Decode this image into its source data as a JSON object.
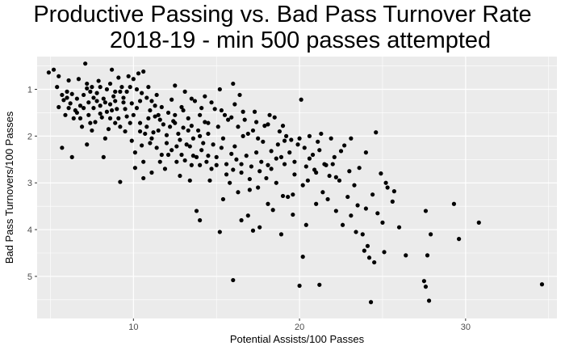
{
  "chart_data": {
    "type": "scatter",
    "title": "Productive Passing vs. Bad Pass Turnover Rate",
    "subtitle": "2018-19 - min 500 passes attempted",
    "xlabel": "Potential Assists/100 Passes",
    "ylabel": "Bad Pass Turnovers/100 Passes",
    "xlim": [
      4.2,
      35.5
    ],
    "ylim": [
      0.3,
      5.9
    ],
    "y_reversed": true,
    "x_ticks": [
      10,
      20,
      30
    ],
    "y_ticks": [
      1,
      2,
      3,
      4,
      5
    ],
    "grid": true,
    "background": "#ebebeb",
    "gridline_color": "#ffffff",
    "point_color": "#000000",
    "points": [
      [
        4.9,
        0.64
      ],
      [
        5.2,
        0.58
      ],
      [
        5.5,
        0.72
      ],
      [
        5.4,
        0.95
      ],
      [
        5.7,
        1.12
      ],
      [
        5.8,
        1.23
      ],
      [
        6.0,
        1.18
      ],
      [
        6.1,
        0.81
      ],
      [
        5.5,
        1.38
      ],
      [
        5.9,
        1.55
      ],
      [
        6.2,
        1.3
      ],
      [
        6.4,
        1.62
      ],
      [
        6.6,
        1.5
      ],
      [
        6.8,
        1.35
      ],
      [
        7.0,
        1.12
      ],
      [
        7.2,
        0.88
      ],
      [
        7.1,
        0.45
      ],
      [
        7.4,
        1.05
      ],
      [
        7.6,
        1.4
      ],
      [
        7.8,
        1.25
      ],
      [
        8.0,
        0.95
      ],
      [
        8.2,
        1.2
      ],
      [
        8.4,
        1.48
      ],
      [
        8.6,
        1.32
      ],
      [
        8.8,
        1.15
      ],
      [
        9.0,
        1.42
      ],
      [
        9.2,
        1.05
      ],
      [
        9.4,
        1.28
      ],
      [
        9.6,
        1.58
      ],
      [
        9.8,
        0.95
      ],
      [
        7.3,
        1.55
      ],
      [
        7.7,
        1.7
      ],
      [
        8.1,
        1.6
      ],
      [
        8.5,
        1.85
      ],
      [
        8.9,
        1.72
      ],
      [
        6.9,
        1.8
      ],
      [
        6.5,
        1.45
      ],
      [
        6.3,
        1.1
      ],
      [
        7.5,
        1.88
      ],
      [
        8.3,
        2.05
      ],
      [
        10.0,
        0.78
      ],
      [
        10.3,
        0.66
      ],
      [
        10.6,
        0.62
      ],
      [
        10.2,
        1.0
      ],
      [
        10.4,
        1.25
      ],
      [
        10.8,
        1.18
      ],
      [
        11.0,
        1.45
      ],
      [
        11.3,
        1.35
      ],
      [
        10.9,
        1.62
      ],
      [
        11.5,
        1.55
      ],
      [
        11.8,
        1.75
      ],
      [
        12.1,
        1.5
      ],
      [
        12.4,
        1.68
      ],
      [
        12.7,
        1.95
      ],
      [
        13.0,
        1.82
      ],
      [
        13.3,
        1.62
      ],
      [
        13.6,
        2.05
      ],
      [
        13.9,
        1.88
      ],
      [
        14.2,
        2.15
      ],
      [
        14.5,
        1.72
      ],
      [
        9.5,
        1.9
      ],
      [
        9.9,
        2.1
      ],
      [
        10.1,
        2.35
      ],
      [
        10.5,
        2.2
      ],
      [
        10.7,
        1.95
      ],
      [
        11.1,
        2.05
      ],
      [
        11.4,
        2.25
      ],
      [
        11.7,
        2.4
      ],
      [
        12.0,
        2.15
      ],
      [
        12.3,
        2.3
      ],
      [
        12.6,
        2.55
      ],
      [
        12.9,
        2.4
      ],
      [
        13.2,
        2.18
      ],
      [
        13.5,
        2.62
      ],
      [
        13.8,
        2.45
      ],
      [
        14.1,
        2.3
      ],
      [
        14.4,
        2.55
      ],
      [
        14.7,
        2.7
      ],
      [
        15.0,
        2.45
      ],
      [
        15.3,
        2.25
      ],
      [
        15.6,
        2.6
      ],
      [
        15.9,
        2.38
      ],
      [
        16.2,
        2.5
      ],
      [
        16.5,
        2.78
      ],
      [
        16.8,
        2.42
      ],
      [
        17.1,
        2.65
      ],
      [
        17.4,
        2.35
      ],
      [
        17.7,
        2.55
      ],
      [
        18.0,
        2.9
      ],
      [
        18.3,
        2.7
      ],
      [
        12.5,
        0.92
      ],
      [
        13.1,
        1.05
      ],
      [
        13.7,
        1.25
      ],
      [
        14.3,
        1.15
      ],
      [
        14.9,
        1.42
      ],
      [
        15.5,
        1.55
      ],
      [
        16.1,
        1.32
      ],
      [
        16.7,
        1.65
      ],
      [
        17.3,
        1.48
      ],
      [
        17.9,
        1.78
      ],
      [
        16.0,
        0.88
      ],
      [
        16.4,
        1.12
      ],
      [
        15.2,
        1.0
      ],
      [
        18.5,
        1.6
      ],
      [
        18.8,
        1.9
      ],
      [
        19.1,
        2.1
      ],
      [
        19.4,
        2.35
      ],
      [
        19.7,
        2.55
      ],
      [
        20.0,
        2.05
      ],
      [
        20.3,
        2.25
      ],
      [
        20.6,
        2.48
      ],
      [
        20.9,
        2.72
      ],
      [
        21.2,
        2.3
      ],
      [
        21.5,
        2.6
      ],
      [
        21.8,
        2.85
      ],
      [
        22.1,
        2.45
      ],
      [
        22.4,
        2.95
      ],
      [
        22.7,
        2.2
      ],
      [
        23.0,
        2.75
      ],
      [
        23.3,
        3.05
      ],
      [
        19.3,
        3.3
      ],
      [
        19.6,
        3.25
      ],
      [
        20.2,
        3.05
      ],
      [
        20.5,
        2.95
      ],
      [
        21.0,
        3.45
      ],
      [
        21.4,
        3.2
      ],
      [
        21.7,
        3.35
      ],
      [
        22.2,
        3.6
      ],
      [
        22.6,
        3.9
      ],
      [
        23.1,
        3.7
      ],
      [
        23.5,
        3.48
      ],
      [
        23.8,
        4.1
      ],
      [
        24.1,
        4.35
      ],
      [
        24.4,
        3.25
      ],
      [
        24.7,
        3.65
      ],
      [
        25.0,
        3.85
      ],
      [
        25.3,
        3.1
      ],
      [
        25.6,
        3.4
      ],
      [
        26.0,
        3.95
      ],
      [
        26.4,
        4.55
      ],
      [
        20.1,
        1.22
      ],
      [
        20.4,
        3.9
      ],
      [
        20.2,
        4.58
      ],
      [
        20.0,
        5.2
      ],
      [
        21.2,
        5.18
      ],
      [
        23.4,
        4.05
      ],
      [
        23.9,
        4.45
      ],
      [
        24.2,
        4.6
      ],
      [
        24.5,
        4.7
      ],
      [
        25.1,
        4.48
      ],
      [
        24.3,
        5.55
      ],
      [
        27.5,
        5.1
      ],
      [
        27.6,
        5.22
      ],
      [
        27.8,
        5.52
      ],
      [
        27.7,
        4.55
      ],
      [
        27.9,
        4.1
      ],
      [
        27.6,
        3.6
      ],
      [
        29.3,
        3.45
      ],
      [
        29.6,
        4.2
      ],
      [
        30.8,
        3.85
      ],
      [
        34.6,
        5.17
      ],
      [
        16.0,
        5.08
      ],
      [
        15.2,
        4.05
      ],
      [
        14.0,
        3.8
      ],
      [
        13.8,
        3.6
      ],
      [
        16.5,
        3.8
      ],
      [
        17.2,
        4.02
      ],
      [
        18.9,
        4.1
      ],
      [
        17.6,
        3.95
      ],
      [
        16.9,
        3.7
      ],
      [
        18.1,
        3.45
      ],
      [
        18.6,
        3.0
      ],
      [
        19.0,
        3.28
      ],
      [
        17.5,
        3.1
      ],
      [
        16.3,
        3.2
      ],
      [
        15.8,
        3.0
      ],
      [
        15.4,
        3.35
      ],
      [
        17.0,
        3.15
      ],
      [
        18.4,
        3.58
      ],
      [
        19.6,
        3.68
      ],
      [
        9.2,
        2.98
      ],
      [
        8.2,
        2.45
      ],
      [
        6.3,
        2.45
      ],
      [
        5.7,
        2.25
      ],
      [
        7.2,
        2.18
      ],
      [
        10.6,
        2.9
      ],
      [
        11.9,
        2.7
      ],
      [
        12.8,
        2.85
      ],
      [
        13.4,
        2.95
      ],
      [
        14.6,
        2.95
      ],
      [
        9.3,
        0.95
      ],
      [
        9.7,
        0.72
      ],
      [
        8.7,
        0.58
      ],
      [
        7.9,
        0.82
      ],
      [
        6.7,
        0.78
      ],
      [
        8.4,
        1.0
      ],
      [
        8.6,
        0.88
      ],
      [
        9.1,
        0.75
      ],
      [
        10.9,
        0.95
      ],
      [
        11.4,
        1.12
      ],
      [
        7.0,
        1.4
      ],
      [
        7.3,
        1.28
      ],
      [
        7.6,
        1.18
      ],
      [
        8.0,
        1.35
      ],
      [
        8.7,
        1.45
      ],
      [
        9.1,
        1.62
      ],
      [
        9.5,
        1.42
      ],
      [
        10.0,
        1.55
      ],
      [
        10.4,
        1.72
      ],
      [
        10.8,
        1.8
      ],
      [
        11.2,
        1.92
      ],
      [
        11.6,
        1.65
      ],
      [
        12.2,
        1.8
      ],
      [
        12.8,
        2.08
      ],
      [
        13.4,
        2.22
      ],
      [
        14.0,
        2.0
      ],
      [
        14.8,
        2.18
      ],
      [
        15.4,
        2.05
      ],
      [
        16.1,
        2.22
      ],
      [
        16.6,
        2.0
      ],
      [
        17.2,
        1.88
      ],
      [
        17.8,
        2.12
      ],
      [
        18.3,
        2.32
      ],
      [
        18.7,
        2.18
      ],
      [
        19.2,
        2.0
      ],
      [
        19.9,
        2.18
      ],
      [
        20.6,
        2.0
      ],
      [
        21.1,
        2.12
      ],
      [
        21.9,
        2.05
      ],
      [
        22.5,
        2.32
      ],
      [
        23.1,
        2.05
      ],
      [
        23.6,
        2.68
      ],
      [
        24.0,
        2.35
      ],
      [
        24.6,
        1.92
      ],
      [
        25.2,
        3.0
      ],
      [
        25.7,
        3.18
      ],
      [
        24.9,
        2.8
      ],
      [
        24.0,
        3.55
      ],
      [
        22.9,
        3.3
      ],
      [
        22.2,
        2.88
      ],
      [
        21.6,
        2.62
      ],
      [
        21.0,
        2.78
      ],
      [
        20.4,
        2.65
      ],
      [
        19.7,
        2.82
      ],
      [
        19.1,
        2.6
      ],
      [
        18.6,
        2.48
      ],
      [
        18.1,
        2.62
      ],
      [
        17.6,
        2.75
      ],
      [
        17.0,
        2.92
      ],
      [
        16.5,
        2.6
      ],
      [
        16.0,
        2.72
      ],
      [
        15.6,
        2.82
      ],
      [
        15.0,
        2.62
      ],
      [
        14.5,
        2.42
      ],
      [
        14.0,
        2.62
      ],
      [
        13.6,
        2.42
      ],
      [
        13.1,
        2.52
      ],
      [
        12.6,
        2.22
      ],
      [
        12.1,
        2.4
      ],
      [
        11.6,
        2.55
      ],
      [
        11.1,
        2.78
      ],
      [
        10.6,
        2.55
      ],
      [
        10.1,
        2.68
      ],
      [
        6.1,
        1.4
      ],
      [
        6.8,
        1.62
      ],
      [
        7.4,
        1.72
      ],
      [
        8.0,
        1.52
      ],
      [
        8.6,
        1.62
      ],
      [
        9.2,
        1.8
      ],
      [
        9.8,
        1.72
      ],
      [
        10.4,
        1.9
      ],
      [
        11.0,
        2.15
      ],
      [
        11.5,
        1.88
      ],
      [
        12.0,
        1.98
      ],
      [
        12.5,
        1.72
      ],
      [
        13.0,
        1.45
      ],
      [
        13.5,
        1.78
      ],
      [
        14.0,
        1.55
      ],
      [
        14.5,
        1.95
      ],
      [
        15.1,
        1.8
      ],
      [
        15.7,
        1.65
      ],
      [
        16.3,
        1.8
      ],
      [
        16.9,
        1.95
      ],
      [
        17.5,
        2.05
      ],
      [
        18.1,
        1.75
      ],
      [
        18.9,
        2.45
      ],
      [
        19.5,
        2.08
      ],
      [
        20.8,
        2.4
      ],
      [
        21.3,
        1.95
      ],
      [
        22.0,
        2.6
      ],
      [
        6.0,
        1.05
      ],
      [
        6.6,
        1.2
      ],
      [
        7.2,
        0.98
      ],
      [
        7.8,
        1.08
      ],
      [
        8.3,
        1.28
      ],
      [
        8.9,
        1.05
      ],
      [
        9.4,
        1.18
      ],
      [
        9.9,
        1.3
      ],
      [
        10.5,
        1.08
      ],
      [
        11.1,
        1.25
      ],
      [
        11.7,
        1.38
      ],
      [
        12.3,
        1.22
      ],
      [
        12.9,
        1.38
      ],
      [
        13.5,
        1.2
      ],
      [
        14.1,
        1.4
      ],
      [
        14.7,
        1.28
      ],
      [
        15.3,
        1.45
      ],
      [
        15.9,
        1.6
      ],
      [
        16.6,
        1.48
      ],
      [
        17.4,
        1.7
      ],
      [
        18.2,
        1.55
      ],
      [
        19.0,
        1.78
      ],
      [
        7.5,
        0.95
      ],
      [
        8.9,
        1.25
      ],
      [
        9.6,
        1.05
      ],
      [
        10.2,
        1.4
      ],
      [
        11.3,
        1.58
      ],
      [
        12.5,
        1.55
      ],
      [
        13.3,
        1.88
      ],
      [
        14.3,
        1.7
      ]
    ]
  }
}
